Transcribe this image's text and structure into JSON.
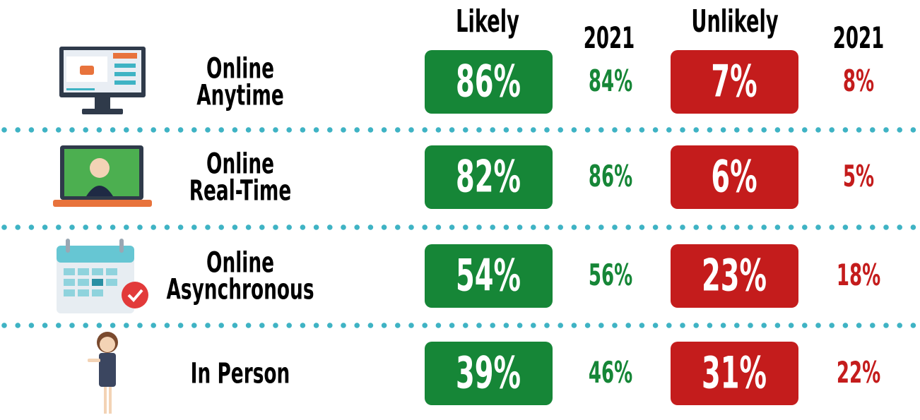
{
  "header": {
    "likely": "Likely",
    "likely_2021": "2021",
    "unlikely": "Unlikely",
    "unlikely_2021": "2021"
  },
  "rows": [
    {
      "label_lines": [
        "Online",
        "Anytime"
      ],
      "likely": "86%",
      "likely_2021": "84%",
      "unlikely": "7%",
      "unlikely_2021": "8%"
    },
    {
      "label_lines": [
        "Online",
        "Real-Time"
      ],
      "likely": "82%",
      "likely_2021": "86%",
      "unlikely": "6%",
      "unlikely_2021": "5%"
    },
    {
      "label_lines": [
        "Online",
        "Asynchronous"
      ],
      "likely": "54%",
      "likely_2021": "56%",
      "unlikely": "23%",
      "unlikely_2021": "18%"
    },
    {
      "label_lines": [
        "In Person"
      ],
      "likely": "39%",
      "likely_2021": "46%",
      "unlikely": "31%",
      "unlikely_2021": "22%"
    }
  ]
}
